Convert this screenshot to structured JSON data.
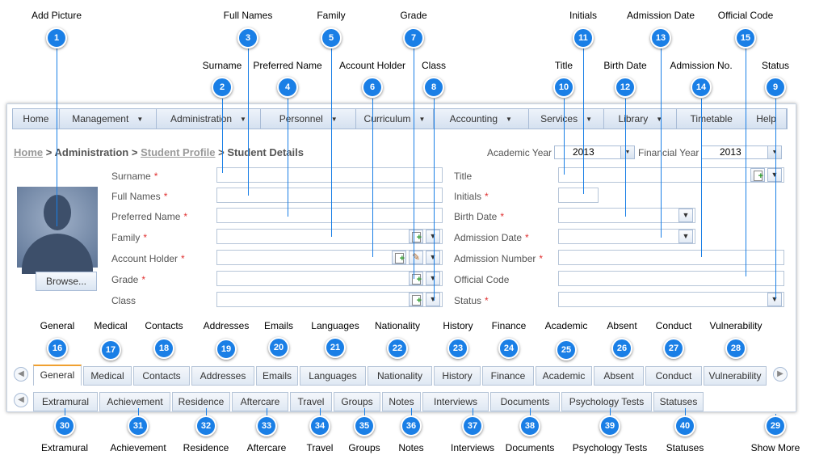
{
  "menu": [
    {
      "label": "Home",
      "caret": false
    },
    {
      "label": "Management",
      "caret": true
    },
    {
      "label": "Administration",
      "caret": true
    },
    {
      "label": "Personnel",
      "caret": true
    },
    {
      "label": "Curriculum",
      "caret": true
    },
    {
      "label": "Accounting",
      "caret": true
    },
    {
      "label": "Services",
      "caret": true
    },
    {
      "label": "Library",
      "caret": true
    },
    {
      "label": "Timetable",
      "caret": false
    },
    {
      "label": "Help",
      "caret": false
    }
  ],
  "breadcrumb": {
    "home": "Home",
    "sep": ">",
    "administration": "Administration",
    "student_profile": "Student Profile",
    "current": "Student Details"
  },
  "academic_year": {
    "label": "Academic Year",
    "value": "2013"
  },
  "financial_year": {
    "label": "Financial Year",
    "value": "2013"
  },
  "left_fields": [
    {
      "label": "Surname",
      "required": true
    },
    {
      "label": "Full Names",
      "required": true
    },
    {
      "label": "Preferred Name",
      "required": true
    },
    {
      "label": "Family",
      "required": true
    },
    {
      "label": "Account Holder",
      "required": true
    },
    {
      "label": "Grade",
      "required": true
    },
    {
      "label": "Class",
      "required": false
    }
  ],
  "right_fields": [
    {
      "label": "Title",
      "required": false
    },
    {
      "label": "Initials",
      "required": true
    },
    {
      "label": "Birth Date",
      "required": true
    },
    {
      "label": "Admission Date",
      "required": true
    },
    {
      "label": "Admission Number",
      "required": true
    },
    {
      "label": "Official Code",
      "required": false
    },
    {
      "label": "Status",
      "required": true
    }
  ],
  "required_mark": "*",
  "browse_label": "Browse...",
  "tabs_row1": [
    "General",
    "Medical",
    "Contacts",
    "Addresses",
    "Emails",
    "Languages",
    "Nationality",
    "History",
    "Finance",
    "Academic",
    "Absent",
    "Conduct",
    "Vulnerability"
  ],
  "tabs_row2": [
    "Extramural",
    "Achievement",
    "Residence",
    "Aftercare",
    "Travel",
    "Groups",
    "Notes",
    "Interviews",
    "Documents",
    "Psychology Tests",
    "Statuses"
  ],
  "annotations": [
    {
      "n": "1",
      "label": "Add Picture"
    },
    {
      "n": "2",
      "label": "Surname"
    },
    {
      "n": "3",
      "label": "Full Names"
    },
    {
      "n": "4",
      "label": "Preferred Name"
    },
    {
      "n": "5",
      "label": "Family"
    },
    {
      "n": "6",
      "label": "Account Holder"
    },
    {
      "n": "7",
      "label": "Grade"
    },
    {
      "n": "8",
      "label": "Class"
    },
    {
      "n": "9",
      "label": "Status"
    },
    {
      "n": "10",
      "label": "Title"
    },
    {
      "n": "11",
      "label": "Initials"
    },
    {
      "n": "12",
      "label": "Birth Date"
    },
    {
      "n": "13",
      "label": "Admission Date"
    },
    {
      "n": "14",
      "label": "Admission No."
    },
    {
      "n": "15",
      "label": "Official Code"
    },
    {
      "n": "16",
      "label": "General"
    },
    {
      "n": "17",
      "label": "Medical"
    },
    {
      "n": "18",
      "label": "Contacts"
    },
    {
      "n": "19",
      "label": "Addresses"
    },
    {
      "n": "20",
      "label": "Emails"
    },
    {
      "n": "21",
      "label": "Languages"
    },
    {
      "n": "22",
      "label": "Nationality"
    },
    {
      "n": "23",
      "label": "History"
    },
    {
      "n": "24",
      "label": "Finance"
    },
    {
      "n": "25",
      "label": "Academic"
    },
    {
      "n": "26",
      "label": "Absent"
    },
    {
      "n": "27",
      "label": "Conduct"
    },
    {
      "n": "28",
      "label": "Vulnerability"
    },
    {
      "n": "29",
      "label": "Show More"
    },
    {
      "n": "30",
      "label": "Extramural"
    },
    {
      "n": "31",
      "label": "Achievement"
    },
    {
      "n": "32",
      "label": "Residence"
    },
    {
      "n": "33",
      "label": "Aftercare"
    },
    {
      "n": "34",
      "label": "Travel"
    },
    {
      "n": "35",
      "label": "Groups"
    },
    {
      "n": "36",
      "label": "Notes"
    },
    {
      "n": "37",
      "label": "Interviews"
    },
    {
      "n": "38",
      "label": "Documents"
    },
    {
      "n": "39",
      "label": "Psychology Tests"
    },
    {
      "n": "40",
      "label": "Statuses"
    }
  ]
}
